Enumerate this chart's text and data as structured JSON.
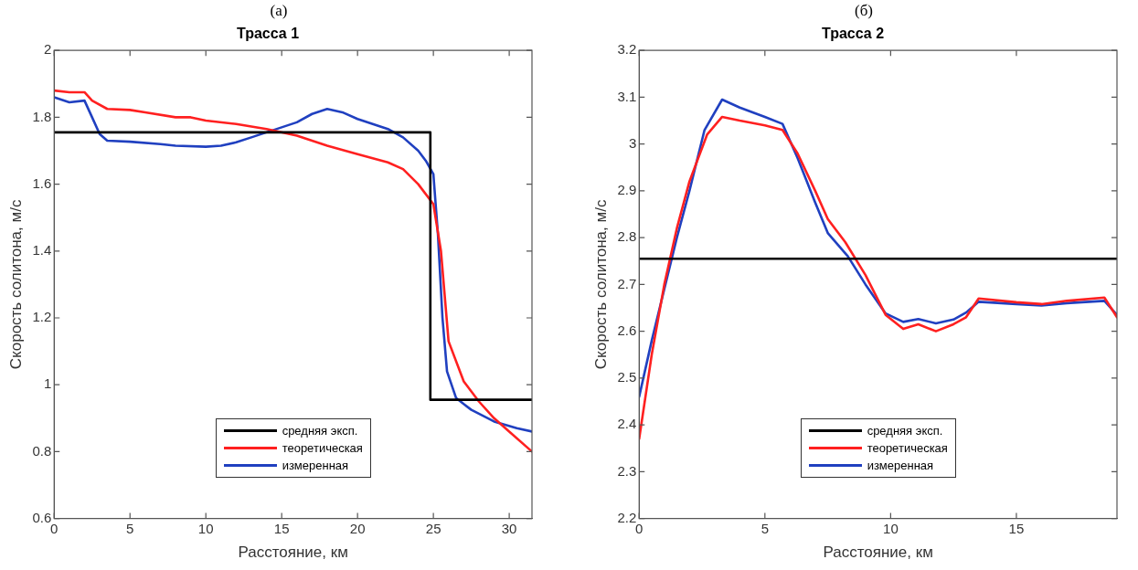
{
  "chart_data": [
    {
      "type": "line",
      "title": "Трасса 1",
      "annotations": [
        "(a)"
      ],
      "xlabel": "Расстояние, км",
      "ylabel": "Скорость солитона, м/с",
      "xlim": [
        0,
        31.5
      ],
      "xticks": [
        0,
        5,
        10,
        15,
        20,
        25,
        30
      ],
      "ylim": [
        0.6,
        2
      ],
      "yticks": [
        0.6,
        0.8,
        1,
        1.2,
        1.4,
        1.6,
        1.8,
        2
      ],
      "grid": false,
      "legend": "bottom",
      "marker": "none",
      "series": [
        {
          "name": "средняя эксп.",
          "color": "#000000",
          "x": [
            0,
            24.8,
            24.8,
            31.5
          ],
          "values": [
            1.755,
            1.755,
            0.955,
            0.955
          ]
        },
        {
          "name": "теоретическая",
          "color": "#ff2020",
          "x": [
            0,
            1,
            2,
            2.5,
            3.5,
            5,
            6,
            8,
            9,
            10,
            12,
            14,
            16,
            18,
            20,
            22,
            23,
            24,
            25,
            25.5,
            26,
            27,
            28,
            29,
            30,
            31.5
          ],
          "values": [
            1.88,
            1.875,
            1.875,
            1.85,
            1.825,
            1.822,
            1.815,
            1.8,
            1.8,
            1.79,
            1.78,
            1.765,
            1.745,
            1.715,
            1.69,
            1.665,
            1.645,
            1.6,
            1.54,
            1.4,
            1.13,
            1.01,
            0.95,
            0.9,
            0.86,
            0.8
          ]
        },
        {
          "name": "измеренная",
          "color": "#2040c0",
          "x": [
            0,
            1,
            2,
            2.5,
            3,
            3.5,
            5,
            7,
            8,
            10,
            11,
            12,
            13,
            14,
            16,
            17,
            18,
            19,
            20,
            22,
            23,
            24,
            24.5,
            25,
            25.3,
            25.6,
            25.9,
            26.5,
            27.5,
            29,
            30.5,
            31.5
          ],
          "values": [
            1.86,
            1.845,
            1.85,
            1.8,
            1.75,
            1.73,
            1.727,
            1.72,
            1.715,
            1.712,
            1.715,
            1.725,
            1.74,
            1.755,
            1.785,
            1.81,
            1.825,
            1.815,
            1.795,
            1.765,
            1.74,
            1.7,
            1.67,
            1.63,
            1.45,
            1.2,
            1.04,
            0.96,
            0.925,
            0.89,
            0.87,
            0.86
          ]
        }
      ]
    },
    {
      "type": "line",
      "title": "Трасса 2",
      "annotations": [
        "(б)"
      ],
      "xlabel": "Расстояние, км",
      "ylabel": "Скорость солитона, м/с",
      "xlim": [
        0,
        19
      ],
      "xticks": [
        0,
        5,
        10,
        15
      ],
      "ylim": [
        2.2,
        3.2
      ],
      "yticks": [
        2.2,
        2.3,
        2.4,
        2.5,
        2.6,
        2.7,
        2.8,
        2.9,
        3,
        3.1,
        3.2
      ],
      "grid": false,
      "legend": "bottom",
      "marker": "none",
      "series": [
        {
          "name": "средняя эксп.",
          "color": "#000000",
          "x": [
            0,
            19
          ],
          "values": [
            2.755,
            2.755
          ]
        },
        {
          "name": "теоретическая",
          "color": "#ff2020",
          "x": [
            0,
            0.5,
            1,
            1.5,
            2,
            2.7,
            3.3,
            4,
            5,
            5.7,
            6.3,
            7,
            7.5,
            8.2,
            9,
            9.8,
            10.5,
            11.1,
            11.8,
            12.5,
            13,
            13.5,
            15,
            16,
            17,
            18.5,
            19
          ],
          "values": [
            2.37,
            2.55,
            2.7,
            2.82,
            2.92,
            3.02,
            3.058,
            3.05,
            3.04,
            3.03,
            2.98,
            2.9,
            2.84,
            2.79,
            2.72,
            2.635,
            2.605,
            2.615,
            2.6,
            2.615,
            2.63,
            2.67,
            2.662,
            2.658,
            2.665,
            2.672,
            2.63
          ]
        },
        {
          "name": "измеренная",
          "color": "#2040c0",
          "x": [
            0,
            0.5,
            1,
            1.5,
            2,
            2.6,
            3.3,
            4,
            5,
            5.7,
            6.3,
            7,
            7.5,
            8.3,
            9,
            9.8,
            10.5,
            11.1,
            11.8,
            12.5,
            13,
            13.5,
            15,
            16,
            17,
            18.5,
            19
          ],
          "values": [
            2.46,
            2.58,
            2.69,
            2.8,
            2.9,
            3.03,
            3.095,
            3.078,
            3.058,
            3.043,
            2.97,
            2.875,
            2.81,
            2.76,
            2.7,
            2.638,
            2.62,
            2.626,
            2.617,
            2.625,
            2.64,
            2.663,
            2.658,
            2.655,
            2.66,
            2.665,
            2.635
          ]
        }
      ]
    }
  ]
}
